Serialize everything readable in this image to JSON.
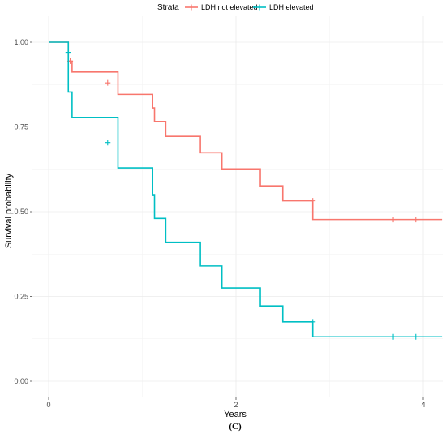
{
  "chart_data": {
    "type": "line",
    "step": "post",
    "xlabel": "Years",
    "ylabel": "Survival probability",
    "xlim": [
      -0.1,
      4.2
    ],
    "ylim": [
      0,
      1
    ],
    "x_ticks": [
      0,
      2,
      4
    ],
    "x_tick_labels": [
      "0",
      "2",
      "4"
    ],
    "y_ticks": [
      0,
      0.25,
      0.5,
      0.75,
      1
    ],
    "y_tick_labels": [
      "0.00",
      "0.25",
      "0.50",
      "0.75",
      "1.00"
    ],
    "grid": true,
    "legend": {
      "title": "Strata",
      "position": "top"
    },
    "caption": "(C)",
    "series": [
      {
        "name": "LDH not elevated",
        "color": "#f8766d",
        "x": [
          0,
          0.21,
          0.25,
          0.63,
          0.74,
          1.11,
          1.13,
          1.25,
          1.62,
          1.85,
          2.26,
          2.5,
          2.82,
          4.2
        ],
        "y": [
          1.0,
          0.944,
          0.912,
          0.912,
          0.846,
          0.806,
          0.766,
          0.722,
          0.674,
          0.626,
          0.576,
          0.532,
          0.477,
          0.477
        ],
        "censor_x": [
          0.23,
          0.63,
          2.82,
          3.68,
          3.92
        ],
        "censor_y": [
          0.944,
          0.88,
          0.532,
          0.477,
          0.477
        ]
      },
      {
        "name": "LDH elevated",
        "color": "#00bfc4",
        "x": [
          0,
          0.21,
          0.25,
          0.63,
          0.74,
          1.11,
          1.13,
          1.25,
          1.62,
          1.85,
          2.26,
          2.5,
          2.82,
          4.2
        ],
        "y": [
          1.0,
          0.853,
          0.778,
          0.778,
          0.629,
          0.55,
          0.48,
          0.41,
          0.34,
          0.275,
          0.222,
          0.175,
          0.131,
          0.131
        ],
        "censor_x": [
          0.21,
          0.63,
          2.82,
          3.68,
          3.92
        ],
        "censor_y": [
          0.97,
          0.704,
          0.175,
          0.131,
          0.131
        ]
      }
    ]
  }
}
